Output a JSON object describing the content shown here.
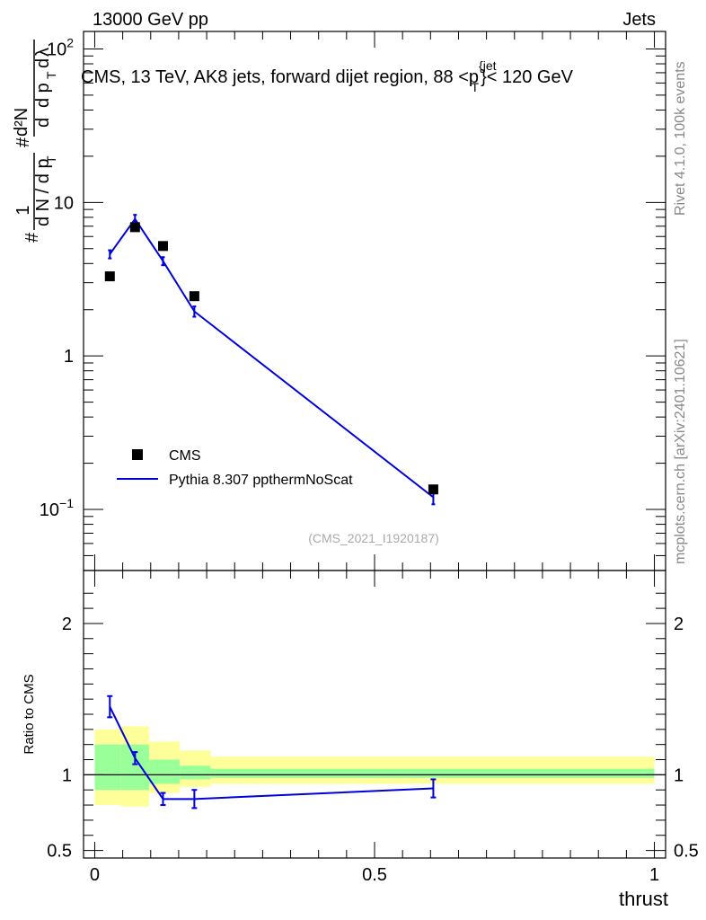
{
  "header": {
    "left": "13000 GeV pp",
    "right": "Jets"
  },
  "side_labels": {
    "rivet": "Rivet 4.1.0,  100k events",
    "mcplots": "mcplots.cern.ch [arXiv:2401.10621]"
  },
  "watermark": "(CMS_2021_I1920187)",
  "chart_data": [
    {
      "type": "scatter",
      "panel": "main",
      "title": "CMS, 13 TeV, AK8 jets, forward dijet region, 88 <p",
      "title_sup": "{jet",
      "title_sub": "T",
      "title_tail": "}< 120 GeV",
      "ylabel_parts": [
        "#",
        "1",
        "d N / d p",
        "T",
        "#",
        "d",
        "d p",
        "T",
        "d",
        "λ"
      ],
      "ylabel_d2N": "d²N",
      "ylabel": "# 1/dN/dp_T # d²N/dp_T dλ",
      "yscale": "log",
      "ylim": [
        0.04,
        130
      ],
      "xlim": [
        -0.02,
        1.02
      ],
      "y_ticks": [
        {
          "value": 0.1,
          "base": "10",
          "exp": "−1"
        },
        {
          "value": 1,
          "base": "1",
          "exp": ""
        },
        {
          "value": 10,
          "base": "10",
          "exp": ""
        },
        {
          "value": 100,
          "base": "10",
          "exp": "2"
        }
      ],
      "legend": {
        "position": "lower-left",
        "entries": [
          "CMS",
          "Pythia 8.307 ppthermNoScat"
        ]
      },
      "series": [
        {
          "name": "CMS",
          "style": "markers",
          "color": "#000000",
          "x": [
            0.027,
            0.072,
            0.122,
            0.178,
            0.605
          ],
          "y": [
            3.3,
            6.9,
            5.2,
            2.45,
            0.135
          ]
        },
        {
          "name": "Pythia 8.307 ppthermNoScat",
          "style": "line",
          "color": "#0000dd",
          "x": [
            0.027,
            0.072,
            0.122,
            0.178,
            0.605
          ],
          "y": [
            4.6,
            7.8,
            4.15,
            1.95,
            0.12
          ],
          "err": [
            0.28,
            0.5,
            0.25,
            0.15,
            0.012
          ]
        }
      ]
    },
    {
      "type": "line",
      "panel": "ratio",
      "ylabel": "Ratio to CMS",
      "xlabel": "thrust",
      "ylim": [
        0.45,
        2.35
      ],
      "xlim": [
        -0.02,
        1.02
      ],
      "x_ticks": [
        "0",
        "0.5",
        "1"
      ],
      "x_tick_values": [
        0,
        0.5,
        1
      ],
      "y_ticks": [
        "0.5",
        "1",
        "2"
      ],
      "y_tick_values": [
        0.5,
        1,
        2
      ],
      "reference_line": 1,
      "bands": [
        {
          "x0": 0.0,
          "x1": 0.047,
          "inner": [
            0.9,
            1.2
          ],
          "outer": [
            0.8,
            1.3
          ]
        },
        {
          "x0": 0.047,
          "x1": 0.097,
          "inner": [
            0.9,
            1.2
          ],
          "outer": [
            0.79,
            1.32
          ]
        },
        {
          "x0": 0.097,
          "x1": 0.152,
          "inner": [
            0.94,
            1.1
          ],
          "outer": [
            0.88,
            1.22
          ]
        },
        {
          "x0": 0.152,
          "x1": 0.207,
          "inner": [
            0.97,
            1.06
          ],
          "outer": [
            0.92,
            1.16
          ]
        },
        {
          "x0": 0.207,
          "x1": 1.0,
          "inner": [
            0.98,
            1.04
          ],
          "outer": [
            0.94,
            1.12
          ]
        }
      ],
      "series": [
        {
          "name": "Pythia 8.307 ppthermNoScat",
          "color": "#0000dd",
          "x": [
            0.027,
            0.072,
            0.122,
            0.178,
            0.605
          ],
          "y": [
            1.45,
            1.11,
            0.84,
            0.84,
            0.91
          ],
          "err": [
            0.07,
            0.04,
            0.04,
            0.06,
            0.06
          ]
        }
      ]
    }
  ]
}
